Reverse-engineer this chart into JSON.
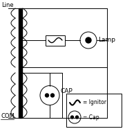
{
  "bg_color": "#ffffff",
  "line_color": "#000000",
  "labels": {
    "line": "Line",
    "com": "COM",
    "lamp": "Lamp",
    "cap": "CAP",
    "legend_ignitor": "= Ignitor",
    "legend_cap": "= Cap"
  },
  "figsize": [
    1.81,
    1.99
  ],
  "dpi": 100
}
